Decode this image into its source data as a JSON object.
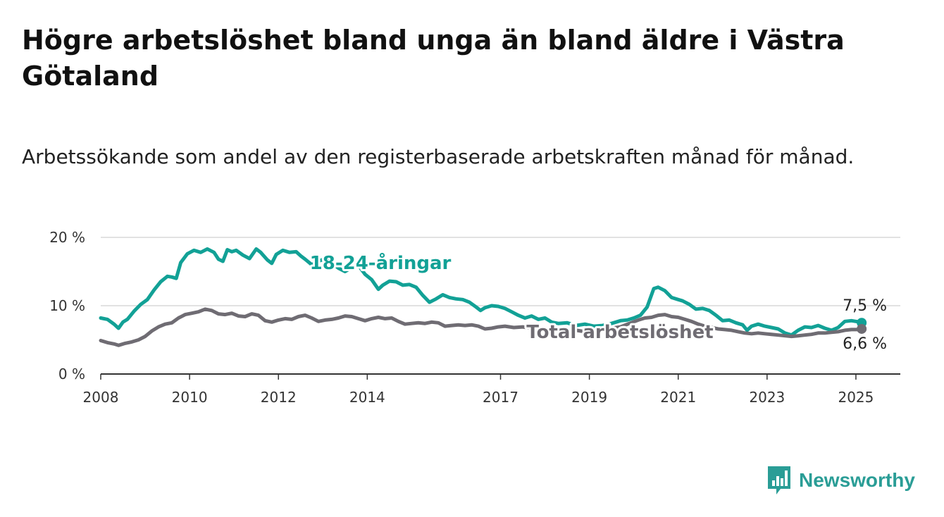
{
  "title": "Högre arbetslöshet bland unga än bland äldre i Västra Götaland",
  "subtitle": "Arbetssökande som andel av den registerbaserade arbetskraften månad för månad.",
  "brand": {
    "name": "Newsworthy",
    "icon": "bar-chart-logo-icon"
  },
  "colors": {
    "youth": "#12a196",
    "total": "#6f6c73",
    "axis": "#333333",
    "grid": "#d9d9d9"
  },
  "chart_data": {
    "type": "line",
    "title": "Högre arbetslöshet bland unga än bland äldre i Västra Götaland",
    "subtitle": "Arbetssökande som andel av den registerbaserade arbetskraften månad för månad.",
    "xlabel": "",
    "ylabel": "",
    "xlim": [
      2008,
      2026
    ],
    "ylim": [
      0,
      20
    ],
    "grid": true,
    "legend": "inline labels",
    "x_ticks": [
      {
        "value": 2008,
        "label": "2008"
      },
      {
        "value": 2010,
        "label": "2010"
      },
      {
        "value": 2012,
        "label": "2012"
      },
      {
        "value": 2014,
        "label": "2014"
      },
      {
        "value": 2017,
        "label": "2017"
      },
      {
        "value": 2019,
        "label": "2019"
      },
      {
        "value": 2021,
        "label": "2021"
      },
      {
        "value": 2023,
        "label": "2023"
      },
      {
        "value": 2025,
        "label": "2025"
      }
    ],
    "y_ticks": [
      {
        "value": 0,
        "label": "0 %"
      },
      {
        "value": 10,
        "label": "10 %"
      },
      {
        "value": 20,
        "label": "20 %"
      }
    ],
    "series": [
      {
        "name": "18-24-åringar",
        "end_label": "7,5 %",
        "points": [
          [
            2008.0,
            8.2
          ],
          [
            2008.15,
            8.0
          ],
          [
            2008.3,
            7.3
          ],
          [
            2008.4,
            6.7
          ],
          [
            2008.5,
            7.6
          ],
          [
            2008.6,
            8.0
          ],
          [
            2008.75,
            9.2
          ],
          [
            2008.9,
            10.2
          ],
          [
            2009.05,
            10.9
          ],
          [
            2009.2,
            12.3
          ],
          [
            2009.35,
            13.5
          ],
          [
            2009.5,
            14.3
          ],
          [
            2009.6,
            14.2
          ],
          [
            2009.7,
            14.0
          ],
          [
            2009.8,
            16.3
          ],
          [
            2009.95,
            17.6
          ],
          [
            2010.1,
            18.1
          ],
          [
            2010.25,
            17.8
          ],
          [
            2010.4,
            18.3
          ],
          [
            2010.55,
            17.8
          ],
          [
            2010.65,
            16.8
          ],
          [
            2010.75,
            16.5
          ],
          [
            2010.85,
            18.2
          ],
          [
            2010.95,
            17.9
          ],
          [
            2011.05,
            18.1
          ],
          [
            2011.2,
            17.4
          ],
          [
            2011.35,
            16.9
          ],
          [
            2011.5,
            18.3
          ],
          [
            2011.6,
            17.8
          ],
          [
            2011.75,
            16.7
          ],
          [
            2011.85,
            16.2
          ],
          [
            2011.95,
            17.5
          ],
          [
            2012.1,
            18.1
          ],
          [
            2012.25,
            17.8
          ],
          [
            2012.4,
            17.9
          ],
          [
            2012.5,
            17.3
          ],
          [
            2012.6,
            16.8
          ],
          [
            2012.75,
            16.0
          ],
          [
            2012.9,
            16.5
          ],
          [
            2013.05,
            16.9
          ],
          [
            2013.2,
            16.2
          ],
          [
            2013.35,
            15.5
          ],
          [
            2013.5,
            15.0
          ],
          [
            2013.65,
            15.6
          ],
          [
            2013.8,
            15.9
          ],
          [
            2013.95,
            14.6
          ],
          [
            2014.1,
            13.8
          ],
          [
            2014.25,
            12.4
          ],
          [
            2014.35,
            13.0
          ],
          [
            2014.5,
            13.6
          ],
          [
            2014.65,
            13.5
          ],
          [
            2014.8,
            13.0
          ],
          [
            2014.95,
            13.1
          ],
          [
            2015.1,
            12.7
          ],
          [
            2015.25,
            11.5
          ],
          [
            2015.4,
            10.5
          ],
          [
            2015.55,
            11.0
          ],
          [
            2015.7,
            11.6
          ],
          [
            2015.85,
            11.2
          ],
          [
            2016.0,
            11.0
          ],
          [
            2016.15,
            10.9
          ],
          [
            2016.3,
            10.5
          ],
          [
            2016.45,
            9.8
          ],
          [
            2016.55,
            9.3
          ],
          [
            2016.65,
            9.7
          ],
          [
            2016.8,
            10.0
          ],
          [
            2016.95,
            9.9
          ],
          [
            2017.1,
            9.6
          ],
          [
            2017.25,
            9.1
          ],
          [
            2017.4,
            8.6
          ],
          [
            2017.55,
            8.2
          ],
          [
            2017.7,
            8.5
          ],
          [
            2017.85,
            8.0
          ],
          [
            2018.0,
            8.2
          ],
          [
            2018.15,
            7.6
          ],
          [
            2018.3,
            7.4
          ],
          [
            2018.5,
            7.5
          ],
          [
            2018.7,
            7.1
          ],
          [
            2018.9,
            7.3
          ],
          [
            2019.1,
            7.0
          ],
          [
            2019.3,
            7.1
          ],
          [
            2019.5,
            7.4
          ],
          [
            2019.7,
            7.8
          ],
          [
            2019.85,
            7.9
          ],
          [
            2020.0,
            8.2
          ],
          [
            2020.15,
            8.6
          ],
          [
            2020.3,
            9.8
          ],
          [
            2020.45,
            12.5
          ],
          [
            2020.55,
            12.7
          ],
          [
            2020.7,
            12.2
          ],
          [
            2020.85,
            11.2
          ],
          [
            2021.0,
            10.9
          ],
          [
            2021.1,
            10.7
          ],
          [
            2021.25,
            10.2
          ],
          [
            2021.4,
            9.5
          ],
          [
            2021.55,
            9.6
          ],
          [
            2021.7,
            9.3
          ],
          [
            2021.85,
            8.6
          ],
          [
            2022.0,
            7.8
          ],
          [
            2022.15,
            7.9
          ],
          [
            2022.3,
            7.5
          ],
          [
            2022.45,
            7.2
          ],
          [
            2022.55,
            6.4
          ],
          [
            2022.65,
            7.0
          ],
          [
            2022.8,
            7.3
          ],
          [
            2022.95,
            7.0
          ],
          [
            2023.1,
            6.8
          ],
          [
            2023.25,
            6.6
          ],
          [
            2023.4,
            6.0
          ],
          [
            2023.55,
            5.7
          ],
          [
            2023.7,
            6.4
          ],
          [
            2023.85,
            6.9
          ],
          [
            2024.0,
            6.8
          ],
          [
            2024.15,
            7.1
          ],
          [
            2024.3,
            6.7
          ],
          [
            2024.45,
            6.4
          ],
          [
            2024.6,
            6.8
          ],
          [
            2024.75,
            7.7
          ],
          [
            2024.9,
            7.8
          ],
          [
            2025.1,
            7.6
          ],
          [
            2025.13,
            7.5
          ]
        ]
      },
      {
        "name": "Total arbetslöshet",
        "end_label": "6,6 %",
        "points": [
          [
            2008.0,
            4.9
          ],
          [
            2008.15,
            4.6
          ],
          [
            2008.3,
            4.4
          ],
          [
            2008.4,
            4.2
          ],
          [
            2008.55,
            4.5
          ],
          [
            2008.7,
            4.7
          ],
          [
            2008.85,
            5.0
          ],
          [
            2009.0,
            5.5
          ],
          [
            2009.15,
            6.3
          ],
          [
            2009.3,
            6.9
          ],
          [
            2009.45,
            7.3
          ],
          [
            2009.6,
            7.5
          ],
          [
            2009.75,
            8.2
          ],
          [
            2009.9,
            8.7
          ],
          [
            2010.05,
            8.9
          ],
          [
            2010.2,
            9.1
          ],
          [
            2010.35,
            9.5
          ],
          [
            2010.5,
            9.3
          ],
          [
            2010.65,
            8.8
          ],
          [
            2010.8,
            8.7
          ],
          [
            2010.95,
            8.9
          ],
          [
            2011.1,
            8.5
          ],
          [
            2011.25,
            8.4
          ],
          [
            2011.4,
            8.8
          ],
          [
            2011.55,
            8.6
          ],
          [
            2011.7,
            7.8
          ],
          [
            2011.85,
            7.6
          ],
          [
            2012.0,
            7.9
          ],
          [
            2012.15,
            8.1
          ],
          [
            2012.3,
            8.0
          ],
          [
            2012.45,
            8.4
          ],
          [
            2012.6,
            8.6
          ],
          [
            2012.75,
            8.2
          ],
          [
            2012.9,
            7.7
          ],
          [
            2013.05,
            7.9
          ],
          [
            2013.2,
            8.0
          ],
          [
            2013.35,
            8.2
          ],
          [
            2013.5,
            8.5
          ],
          [
            2013.65,
            8.4
          ],
          [
            2013.8,
            8.1
          ],
          [
            2013.95,
            7.8
          ],
          [
            2014.1,
            8.1
          ],
          [
            2014.25,
            8.3
          ],
          [
            2014.4,
            8.1
          ],
          [
            2014.55,
            8.2
          ],
          [
            2014.7,
            7.7
          ],
          [
            2014.85,
            7.3
          ],
          [
            2015.0,
            7.4
          ],
          [
            2015.15,
            7.5
          ],
          [
            2015.3,
            7.4
          ],
          [
            2015.45,
            7.6
          ],
          [
            2015.6,
            7.5
          ],
          [
            2015.75,
            7.0
          ],
          [
            2015.9,
            7.1
          ],
          [
            2016.05,
            7.2
          ],
          [
            2016.2,
            7.1
          ],
          [
            2016.35,
            7.2
          ],
          [
            2016.5,
            7.0
          ],
          [
            2016.65,
            6.6
          ],
          [
            2016.8,
            6.7
          ],
          [
            2016.95,
            6.9
          ],
          [
            2017.1,
            7.0
          ],
          [
            2017.3,
            6.8
          ],
          [
            2017.5,
            6.9
          ],
          [
            2017.7,
            6.7
          ],
          [
            2017.9,
            6.5
          ],
          [
            2018.1,
            6.6
          ],
          [
            2018.3,
            6.3
          ],
          [
            2018.5,
            6.2
          ],
          [
            2018.7,
            6.4
          ],
          [
            2018.9,
            6.2
          ],
          [
            2019.1,
            6.3
          ],
          [
            2019.3,
            6.5
          ],
          [
            2019.5,
            6.7
          ],
          [
            2019.7,
            6.9
          ],
          [
            2019.9,
            7.4
          ],
          [
            2020.1,
            7.9
          ],
          [
            2020.25,
            8.2
          ],
          [
            2020.4,
            8.3
          ],
          [
            2020.55,
            8.6
          ],
          [
            2020.7,
            8.7
          ],
          [
            2020.85,
            8.4
          ],
          [
            2021.0,
            8.3
          ],
          [
            2021.15,
            8.0
          ],
          [
            2021.3,
            7.7
          ],
          [
            2021.45,
            7.3
          ],
          [
            2021.6,
            7.0
          ],
          [
            2021.75,
            6.8
          ],
          [
            2021.9,
            6.6
          ],
          [
            2022.05,
            6.5
          ],
          [
            2022.2,
            6.4
          ],
          [
            2022.35,
            6.2
          ],
          [
            2022.5,
            6.0
          ],
          [
            2022.65,
            5.9
          ],
          [
            2022.8,
            6.0
          ],
          [
            2022.95,
            5.9
          ],
          [
            2023.1,
            5.8
          ],
          [
            2023.25,
            5.7
          ],
          [
            2023.4,
            5.6
          ],
          [
            2023.55,
            5.5
          ],
          [
            2023.7,
            5.6
          ],
          [
            2023.85,
            5.7
          ],
          [
            2024.0,
            5.8
          ],
          [
            2024.15,
            6.0
          ],
          [
            2024.3,
            6.0
          ],
          [
            2024.45,
            6.1
          ],
          [
            2024.6,
            6.2
          ],
          [
            2024.75,
            6.4
          ],
          [
            2024.9,
            6.5
          ],
          [
            2025.05,
            6.5
          ],
          [
            2025.13,
            6.6
          ]
        ]
      }
    ]
  }
}
